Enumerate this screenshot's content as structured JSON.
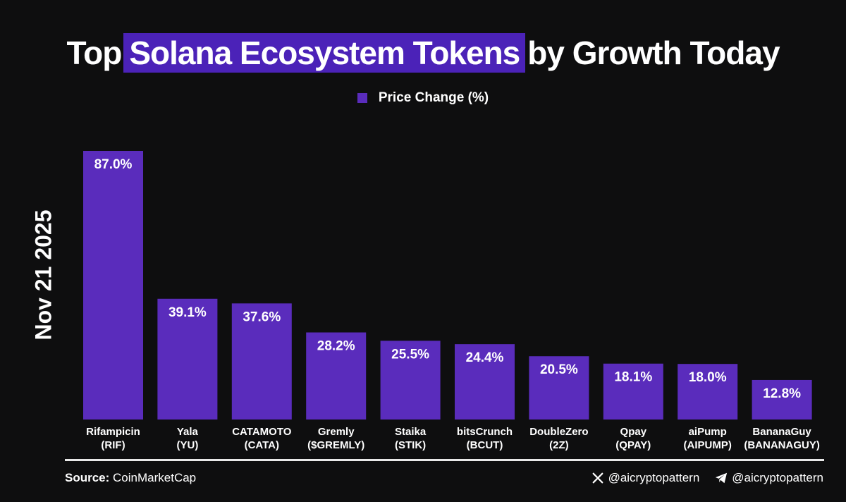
{
  "title": {
    "prefix": "Top",
    "highlight": "Solana Ecosystem Tokens",
    "suffix": "by Growth Today"
  },
  "date": "Nov 21 2025",
  "footer": {
    "source_label": "Source:",
    "source_value": "CoinMarketCap",
    "x_handle": "@aicryptopattern",
    "telegram_handle": "@aicryptopattern"
  },
  "colors": {
    "bar": "#5a2cbc",
    "title_highlight": "#4b22b8",
    "background": "#0e0e0f"
  },
  "chart_data": {
    "type": "bar",
    "title": "Top Solana Ecosystem Tokens by Growth Today",
    "legend": [
      "Price Change (%)"
    ],
    "legend_position": "top-center",
    "grid": false,
    "ylim": [
      0,
      87
    ],
    "categories": [
      [
        "Rifampicin",
        "(RIF)"
      ],
      [
        "Yala",
        "(YU)"
      ],
      [
        "CATAMOTO",
        "(CATA)"
      ],
      [
        "Gremly",
        "($GREMLY)"
      ],
      [
        "Staika",
        "(STIK)"
      ],
      [
        "bitsCrunch",
        "(BCUT)"
      ],
      [
        "DoubleZero",
        "(2Z)"
      ],
      [
        "Qpay",
        "(QPAY)"
      ],
      [
        "aiPump",
        "(AIPUMP)"
      ],
      [
        "BananaGuy",
        "(BANANAGUY)"
      ]
    ],
    "series": [
      {
        "name": "Price Change (%)",
        "values": [
          87.0,
          39.1,
          37.6,
          28.2,
          25.5,
          24.4,
          20.5,
          18.1,
          18.0,
          12.8
        ],
        "labels": [
          "87.0%",
          "39.1%",
          "37.6%",
          "28.2%",
          "25.5%",
          "24.4%",
          "20.5%",
          "18.1%",
          "18.0%",
          "12.8%"
        ]
      }
    ]
  }
}
